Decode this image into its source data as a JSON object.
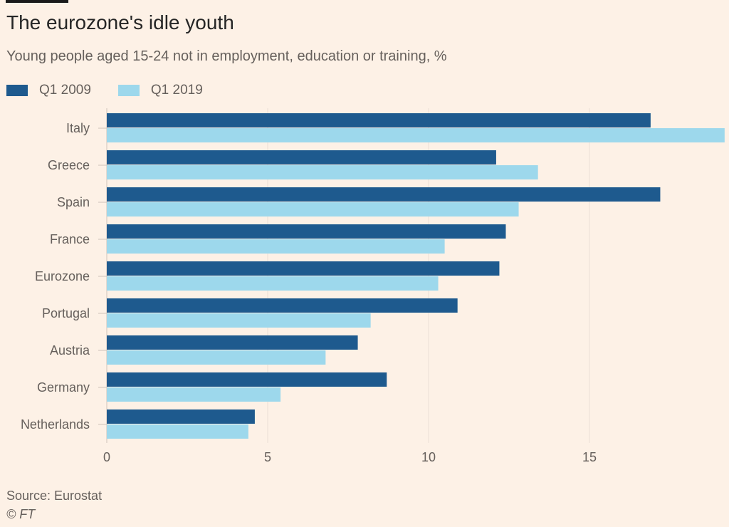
{
  "chart_data": {
    "type": "bar",
    "orientation": "horizontal",
    "title": "The eurozone's idle youth",
    "subtitle": "Young people aged 15-24 not in employment, education or training, %",
    "categories": [
      "Italy",
      "Greece",
      "Spain",
      "France",
      "Eurozone",
      "Portugal",
      "Austria",
      "Germany",
      "Netherlands"
    ],
    "series": [
      {
        "name": "Q1 2009",
        "color": "#1e5a8e",
        "values": [
          16.9,
          12.1,
          17.2,
          12.4,
          12.2,
          10.9,
          7.8,
          8.7,
          4.6
        ]
      },
      {
        "name": "Q1 2019",
        "color": "#9dd8ec",
        "values": [
          19.2,
          13.4,
          12.8,
          10.5,
          10.3,
          8.2,
          6.8,
          5.4,
          4.4
        ]
      }
    ],
    "xlim": [
      0,
      19.2
    ],
    "xticks": [
      0,
      5,
      10,
      15
    ],
    "xlabel": "",
    "ylabel": "",
    "grid": true,
    "legend_position": "top-left",
    "source": "Source: Eurostat",
    "credit": "© FT"
  }
}
